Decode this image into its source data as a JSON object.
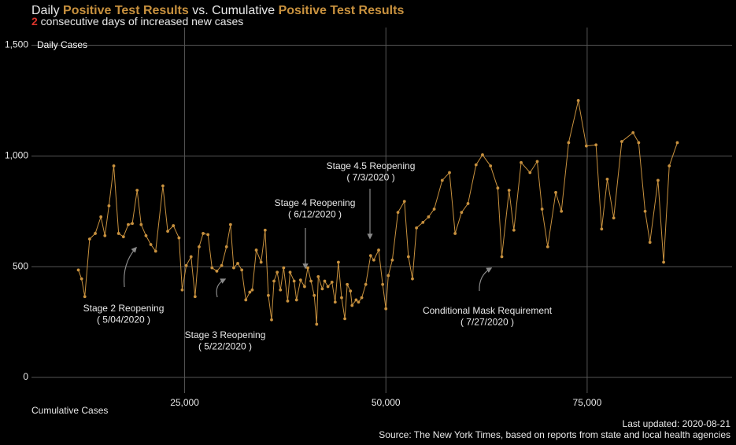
{
  "chart_data": {
    "type": "line",
    "title": [
      "Daily ",
      "Positive Test Results",
      " vs. Cumulative ",
      "Positive Test Results"
    ],
    "subtitle": [
      "2",
      " consecutive days of increased new cases"
    ],
    "y_label": "Daily Cases",
    "x_label": "Cumulative Cases",
    "footer": [
      "Last updated: 2020-08-21",
      "Source: The New York Times, based on reports from state and local health agencies"
    ],
    "color": "#c8913e",
    "grid": true,
    "xlim": [
      5000,
      93000
    ],
    "ylim": [
      -110,
      1580
    ],
    "xticks": [
      {
        "value": 25000,
        "label": "25,000"
      },
      {
        "value": 50000,
        "label": "50,000"
      },
      {
        "value": 75000,
        "label": "75,000"
      }
    ],
    "yticks": [
      0,
      500,
      {
        "value": 1000,
        "label": "1,000"
      },
      {
        "value": 1500,
        "label": "1,500"
      }
    ],
    "x": [
      11800,
      12200,
      12600,
      13200,
      13900,
      14600,
      15100,
      15600,
      16200,
      16800,
      17400,
      18000,
      18500,
      19100,
      19600,
      20200,
      20800,
      21400,
      22300,
      22900,
      23600,
      24300,
      24700,
      25200,
      25800,
      26300,
      26800,
      27300,
      27900,
      28400,
      29000,
      29600,
      30200,
      30700,
      31100,
      31600,
      32100,
      32600,
      33100,
      33400,
      33900,
      34500,
      35000,
      35400,
      35800,
      36100,
      36500,
      36900,
      37300,
      37800,
      38100,
      38600,
      38900,
      39400,
      39900,
      40300,
      40700,
      41100,
      41400,
      41600,
      42100,
      42400,
      42800,
      43300,
      43700,
      44100,
      44500,
      44900,
      45200,
      45600,
      45800,
      46300,
      46600,
      47000,
      47500,
      48100,
      48500,
      49100,
      49600,
      50000,
      50300,
      50800,
      51500,
      52300,
      52800,
      53300,
      53800,
      54600,
      55300,
      56000,
      57000,
      57900,
      58600,
      59400,
      60200,
      61200,
      62000,
      63000,
      63900,
      64400,
      65300,
      65900,
      66800,
      67900,
      68800,
      69400,
      70100,
      71100,
      71800,
      72700,
      73900,
      74900,
      76100,
      76800,
      77500,
      78300,
      79300,
      80700,
      81400,
      82200,
      82800,
      83800,
      84500,
      85200,
      86200
    ],
    "values": [
      485,
      445,
      365,
      625,
      650,
      725,
      640,
      775,
      955,
      650,
      635,
      690,
      695,
      845,
      690,
      640,
      600,
      570,
      865,
      660,
      685,
      630,
      395,
      505,
      545,
      365,
      590,
      650,
      645,
      495,
      480,
      505,
      590,
      690,
      495,
      515,
      485,
      350,
      385,
      395,
      575,
      520,
      665,
      370,
      260,
      435,
      475,
      395,
      495,
      345,
      475,
      435,
      350,
      440,
      410,
      495,
      435,
      370,
      240,
      455,
      400,
      435,
      410,
      430,
      340,
      520,
      360,
      265,
      420,
      390,
      325,
      350,
      340,
      360,
      420,
      550,
      530,
      575,
      420,
      310,
      460,
      530,
      745,
      795,
      545,
      445,
      675,
      700,
      725,
      760,
      890,
      925,
      650,
      745,
      785,
      960,
      1005,
      955,
      855,
      545,
      845,
      665,
      970,
      925,
      975,
      760,
      590,
      835,
      750,
      1060,
      1250,
      1045,
      1050,
      670,
      895,
      720,
      1065,
      1105,
      1060,
      750,
      610,
      890,
      520,
      955,
      1060
    ],
    "annotations": [
      {
        "lines": [
          "Stage 2 Reopening",
          "( 5/04/2020 )"
        ]
      },
      {
        "lines": [
          "Stage 3 Reopening",
          "( 5/22/2020 )"
        ]
      },
      {
        "lines": [
          "Stage 4 Reopening",
          "( 6/12/2020 )"
        ]
      },
      {
        "lines": [
          "Stage 4.5 Reopening",
          "( 7/3/2020 )"
        ]
      },
      {
        "lines": [
          "Conditional Mask Requirement",
          "( 7/27/2020 )"
        ]
      }
    ]
  }
}
